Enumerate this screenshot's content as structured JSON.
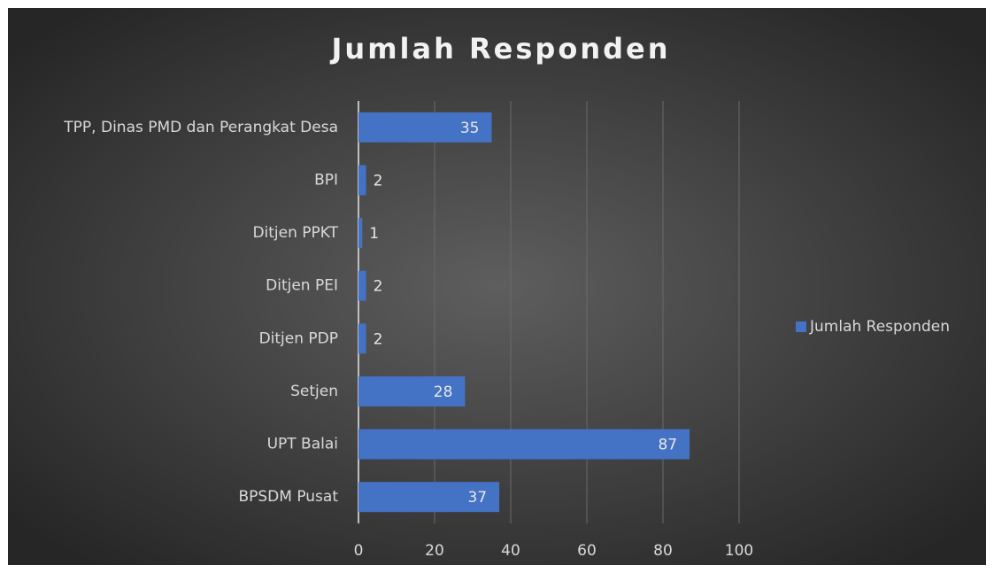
{
  "chart_data": {
    "type": "bar",
    "orientation": "horizontal",
    "title": "Jumlah Responden",
    "categories": [
      "TPP, Dinas PMD dan Perangkat Desa",
      "BPI",
      "Ditjen PPKT",
      "Ditjen PEI",
      "Ditjen PDP",
      "Setjen",
      "UPT Balai ",
      "BPSDM Pusat"
    ],
    "series": [
      {
        "name": "Jumlah Responden",
        "color": "#4472c4",
        "values": [
          35,
          2,
          1,
          2,
          2,
          28,
          87,
          37
        ]
      }
    ],
    "xlim": [
      0,
      100
    ],
    "xticks": [
      0,
      20,
      40,
      60,
      80,
      100
    ],
    "grid": true,
    "legend": "right"
  }
}
